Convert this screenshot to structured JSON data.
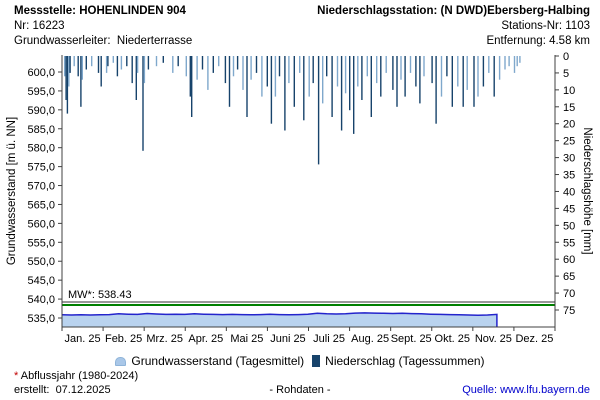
{
  "header": {
    "left": {
      "title": "Messstelle: HOHENLINDEN 904",
      "nr": "Nr: 16223",
      "aquifer": "Grundwasserleiter:  Niederterrasse"
    },
    "right": {
      "title": "Niederschlagsstation: (N DWD)Ebersberg-Halbing",
      "station_nr": "Stations-Nr: 1103",
      "distance": "Entfernung: 4.58 km"
    }
  },
  "chart_data": {
    "type": "combo",
    "subtype": "area + inverted bars",
    "left_axis": {
      "label": "Grundwasserstand [m ü. NN]",
      "min": 535,
      "max": 600,
      "step": 5,
      "ticks": [
        600,
        595,
        590,
        585,
        580,
        575,
        570,
        565,
        560,
        555,
        550,
        545,
        540,
        535
      ],
      "tick_format": "german-decimal-comma-one-digit"
    },
    "right_axis": {
      "label": "Niederschlagshöhe [mm]",
      "min": 0,
      "max": 75,
      "step": 5,
      "inverted": true,
      "ticks": [
        0,
        5,
        10,
        15,
        20,
        25,
        30,
        35,
        40,
        45,
        50,
        55,
        60,
        65,
        70,
        75
      ]
    },
    "x_axis": {
      "months": [
        "Jan. 25",
        "Feb. 25",
        "Mrz. 25",
        "Apr. 25",
        "Mai 25",
        "Juni 25",
        "Juli 25",
        "Aug. 25",
        "Sept. 25",
        "Okt. 25",
        "Nov. 25",
        "Dez. 25"
      ],
      "days_in_year": 365
    },
    "mean_line": {
      "label": "MW*: 538.43",
      "value": 538.43,
      "color": "#008000"
    },
    "series": [
      {
        "name": "Grundwasserstand (Tagesmittel)",
        "type": "area",
        "color_fill": "#b9d3ef",
        "color_line": "#2424cc",
        "unit": "m ü. NN",
        "points": [
          [
            0,
            535.85
          ],
          [
            7,
            535.8
          ],
          [
            14,
            535.85
          ],
          [
            21,
            535.8
          ],
          [
            28,
            535.85
          ],
          [
            35,
            535.9
          ],
          [
            42,
            536.1
          ],
          [
            49,
            536.0
          ],
          [
            56,
            535.95
          ],
          [
            63,
            536.2
          ],
          [
            70,
            536.05
          ],
          [
            77,
            535.95
          ],
          [
            84,
            536.0
          ],
          [
            91,
            535.95
          ],
          [
            98,
            536.1
          ],
          [
            105,
            536.0
          ],
          [
            112,
            535.95
          ],
          [
            119,
            535.9
          ],
          [
            126,
            535.95
          ],
          [
            133,
            535.9
          ],
          [
            140,
            535.85
          ],
          [
            147,
            535.9
          ],
          [
            154,
            536.0
          ],
          [
            161,
            535.9
          ],
          [
            168,
            535.85
          ],
          [
            175,
            535.9
          ],
          [
            182,
            536.0
          ],
          [
            189,
            536.25
          ],
          [
            196,
            536.1
          ],
          [
            203,
            536.05
          ],
          [
            210,
            536.1
          ],
          [
            217,
            536.3
          ],
          [
            224,
            536.35
          ],
          [
            231,
            536.3
          ],
          [
            238,
            536.25
          ],
          [
            245,
            536.2
          ],
          [
            252,
            536.25
          ],
          [
            259,
            536.15
          ],
          [
            266,
            536.1
          ],
          [
            273,
            536.0
          ],
          [
            280,
            535.95
          ],
          [
            287,
            535.9
          ],
          [
            294,
            535.85
          ],
          [
            301,
            535.8
          ],
          [
            308,
            535.75
          ],
          [
            315,
            535.8
          ],
          [
            322,
            535.95
          ]
        ]
      },
      {
        "name": "Niederschlag (Tagessummen)",
        "type": "bar",
        "color": "#17436b",
        "color_alt": "#7fa8cc",
        "unit": "mm",
        "points": [
          [
            2,
            6,
            1
          ],
          [
            3,
            13,
            0
          ],
          [
            4,
            17,
            0
          ],
          [
            5,
            9,
            1
          ],
          [
            6,
            5,
            0
          ],
          [
            9,
            3,
            1
          ],
          [
            12,
            6,
            0
          ],
          [
            14,
            15,
            0
          ],
          [
            15,
            7,
            1
          ],
          [
            18,
            4,
            0
          ],
          [
            22,
            3,
            1
          ],
          [
            27,
            5,
            0
          ],
          [
            29,
            9,
            0
          ],
          [
            33,
            5,
            1
          ],
          [
            34,
            3,
            0
          ],
          [
            38,
            2,
            1
          ],
          [
            41,
            6,
            0
          ],
          [
            44,
            4,
            1
          ],
          [
            48,
            3,
            0
          ],
          [
            52,
            8,
            0
          ],
          [
            55,
            13,
            0
          ],
          [
            56,
            5,
            1
          ],
          [
            60,
            28,
            0
          ],
          [
            61,
            8,
            1
          ],
          [
            64,
            4,
            0
          ],
          [
            70,
            3,
            1
          ],
          [
            75,
            2,
            0
          ],
          [
            82,
            5,
            1
          ],
          [
            86,
            3,
            0
          ],
          [
            92,
            6,
            1
          ],
          [
            95,
            12,
            0
          ],
          [
            96,
            18,
            0
          ],
          [
            100,
            7,
            1
          ],
          [
            104,
            4,
            0
          ],
          [
            108,
            10,
            1
          ],
          [
            112,
            5,
            0
          ],
          [
            116,
            3,
            1
          ],
          [
            121,
            8,
            0
          ],
          [
            124,
            15,
            0
          ],
          [
            127,
            6,
            1
          ],
          [
            130,
            4,
            0
          ],
          [
            134,
            10,
            1
          ],
          [
            137,
            18,
            0
          ],
          [
            140,
            7,
            1
          ],
          [
            144,
            5,
            0
          ],
          [
            148,
            12,
            1
          ],
          [
            152,
            9,
            0
          ],
          [
            155,
            20,
            0
          ],
          [
            158,
            12,
            1
          ],
          [
            161,
            6,
            0
          ],
          [
            165,
            22,
            0
          ],
          [
            168,
            8,
            1
          ],
          [
            172,
            15,
            0
          ],
          [
            176,
            5,
            1
          ],
          [
            179,
            19,
            0
          ],
          [
            183,
            12,
            1
          ],
          [
            186,
            8,
            0
          ],
          [
            190,
            32,
            0
          ],
          [
            193,
            14,
            1
          ],
          [
            196,
            6,
            0
          ],
          [
            200,
            18,
            0
          ],
          [
            204,
            9,
            1
          ],
          [
            207,
            22,
            0
          ],
          [
            210,
            11,
            1
          ],
          [
            213,
            16,
            0
          ],
          [
            216,
            23,
            0
          ],
          [
            219,
            9,
            1
          ],
          [
            222,
            13,
            0
          ],
          [
            226,
            6,
            1
          ],
          [
            229,
            18,
            0
          ],
          [
            233,
            8,
            1
          ],
          [
            236,
            12,
            0
          ],
          [
            240,
            5,
            1
          ],
          [
            245,
            10,
            0
          ],
          [
            248,
            15,
            0
          ],
          [
            251,
            7,
            1
          ],
          [
            254,
            12,
            0
          ],
          [
            258,
            5,
            1
          ],
          [
            262,
            9,
            0
          ],
          [
            265,
            14,
            0
          ],
          [
            268,
            6,
            1
          ],
          [
            274,
            8,
            0
          ],
          [
            277,
            20,
            0
          ],
          [
            281,
            12,
            1
          ],
          [
            285,
            6,
            0
          ],
          [
            289,
            15,
            0
          ],
          [
            293,
            9,
            1
          ],
          [
            297,
            15,
            0
          ],
          [
            300,
            10,
            1
          ],
          [
            305,
            15,
            0
          ],
          [
            308,
            12,
            1
          ],
          [
            312,
            9,
            0
          ],
          [
            316,
            5,
            1
          ],
          [
            320,
            12,
            0
          ],
          [
            324,
            7,
            1
          ],
          [
            328,
            4,
            1
          ],
          [
            331,
            3,
            1
          ],
          [
            335,
            5,
            1
          ],
          [
            337,
            3,
            1
          ],
          [
            339,
            2,
            1
          ]
        ]
      }
    ]
  },
  "legend": [
    {
      "label": "Grundwasserstand (Tagesmittel)",
      "marker": "area-icon"
    },
    {
      "label": "Niederschlag (Tagessummen)",
      "marker": "square-icon"
    }
  ],
  "footer": {
    "note_star": "*",
    "note_text": " Abflussjahr (1980-2024)",
    "created": "erstellt:  07.12.2025",
    "center": "- Rohdaten -",
    "source": "Quelle: www.lfu.bayern.de"
  }
}
